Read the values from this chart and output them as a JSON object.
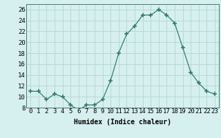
{
  "x": [
    0,
    1,
    2,
    3,
    4,
    5,
    6,
    7,
    8,
    9,
    10,
    11,
    12,
    13,
    14,
    15,
    16,
    17,
    18,
    19,
    20,
    21,
    22,
    23
  ],
  "y": [
    11,
    11,
    9.5,
    10.5,
    10,
    8.5,
    7.5,
    8.5,
    8.5,
    9.5,
    13,
    18,
    21.5,
    23,
    25,
    25,
    26,
    25,
    23.5,
    19,
    14.5,
    12.5,
    11,
    10.5
  ],
  "xlabel": "Humidex (Indice chaleur)",
  "ylim": [
    8,
    27
  ],
  "xlim": [
    -0.5,
    23.5
  ],
  "yticks": [
    8,
    10,
    12,
    14,
    16,
    18,
    20,
    22,
    24,
    26
  ],
  "xticks": [
    0,
    1,
    2,
    3,
    4,
    5,
    6,
    7,
    8,
    9,
    10,
    11,
    12,
    13,
    14,
    15,
    16,
    17,
    18,
    19,
    20,
    21,
    22,
    23
  ],
  "line_color": "#2e7d6e",
  "marker": "+",
  "marker_size": 4,
  "bg_color": "#d6f0ef",
  "grid_color": "#b8d8d5",
  "axis_label_fontsize": 7,
  "tick_fontsize": 6.5
}
